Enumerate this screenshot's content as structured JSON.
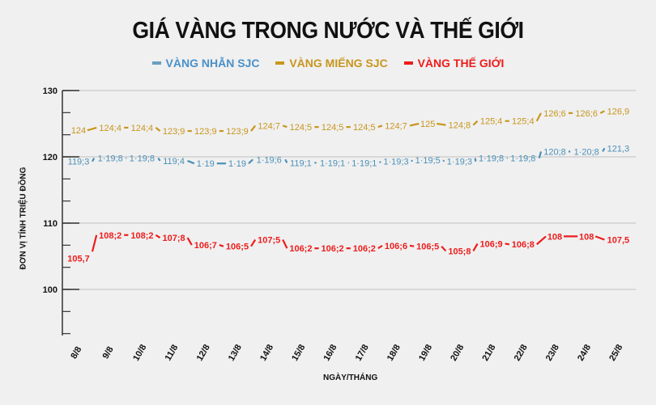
{
  "title": "GIÁ VÀNG TRONG NƯỚC VÀ THẾ GIỚI",
  "legend": [
    {
      "label": "VÀNG NHẪN SJC",
      "color": "#4a90b8"
    },
    {
      "label": "VÀNG MIẾNG SJC",
      "color": "#c8961e"
    },
    {
      "label": "VÀNG THẾ GIỚI",
      "color": "#ee1c1c"
    }
  ],
  "axes": {
    "ylabel": "ĐƠN VỊ TÍNH TRIỆU ĐỒNG",
    "xlabel": "NGÀY/THÁNG",
    "yticks": [
      "130",
      "120",
      "110",
      "100"
    ]
  },
  "chart_data": {
    "type": "line",
    "title": "GIÁ VÀNG TRONG NƯỚC VÀ THẾ GIỚI",
    "xlabel": "NGÀY/THÁNG",
    "ylabel": "ĐƠN VỊ TÍNH TRIỆU ĐỒNG",
    "ylim": [
      93.3,
      130
    ],
    "yticks": [
      100,
      110,
      120,
      130
    ],
    "grid": true,
    "legend_position": "top",
    "categories": [
      "8/8",
      "9/8",
      "10/8",
      "11/8",
      "12/8",
      "13/8",
      "14/8",
      "15/8",
      "16/8",
      "17/8",
      "18/8",
      "19/8",
      "20/8",
      "21/8",
      "22/8",
      "23/8",
      "24/8",
      "25/8"
    ],
    "series": [
      {
        "name": "VÀNG NHẪN SJC",
        "color": "#4a90b8",
        "values": [
          119.3,
          119.8,
          119.8,
          119.4,
          119,
          119,
          119.6,
          119.1,
          119.1,
          119.1,
          119.3,
          119.5,
          119.3,
          119.8,
          119.8,
          120.8,
          120.8,
          121.3
        ],
        "labels": [
          "119;3",
          "1·19;8",
          "1·19;8",
          "119;4",
          "1·19",
          "1·19",
          "1·19;6",
          "119;1",
          "1·19;1",
          "1·19;1",
          "1·19;3",
          "1·19;5",
          "1·19;3",
          "1·19;8",
          "1·19;8",
          "120;8",
          "1·20;8",
          "121,3"
        ]
      },
      {
        "name": "VÀNG MIẾNG SJC",
        "color": "#c8961e",
        "values": [
          124,
          124.4,
          124.4,
          123.9,
          123.9,
          123.9,
          124.7,
          124.5,
          124.5,
          124.5,
          124.7,
          125,
          124.8,
          125.4,
          125.4,
          126.6,
          126.6,
          126.9
        ],
        "labels": [
          "124",
          "124;4",
          "124;4",
          "123;9",
          "123;9",
          "123;9",
          "124;7",
          "124;5",
          "124;5",
          "124;5",
          "124;7",
          "125",
          "124;8",
          "125;4",
          "125;4",
          "126;6",
          "126;6",
          "126,9"
        ]
      },
      {
        "name": "VÀNG THẾ GIỚI",
        "color": "#ee1c1c",
        "values": [
          105.7,
          108.2,
          108.2,
          107.8,
          106.7,
          106.5,
          107.5,
          106.2,
          106.2,
          106.2,
          106.6,
          106.5,
          105.8,
          106.9,
          106.8,
          108,
          108,
          107.5
        ],
        "labels": [
          "105,7",
          "108;2",
          "108;2",
          "107;8",
          "106;7",
          "106;5",
          "107;5",
          "106;2",
          "106;2",
          "106;2",
          "106;6",
          "106;5",
          "105;8",
          "106;9",
          "106;8",
          "108",
          "108",
          "107,5"
        ]
      }
    ]
  }
}
